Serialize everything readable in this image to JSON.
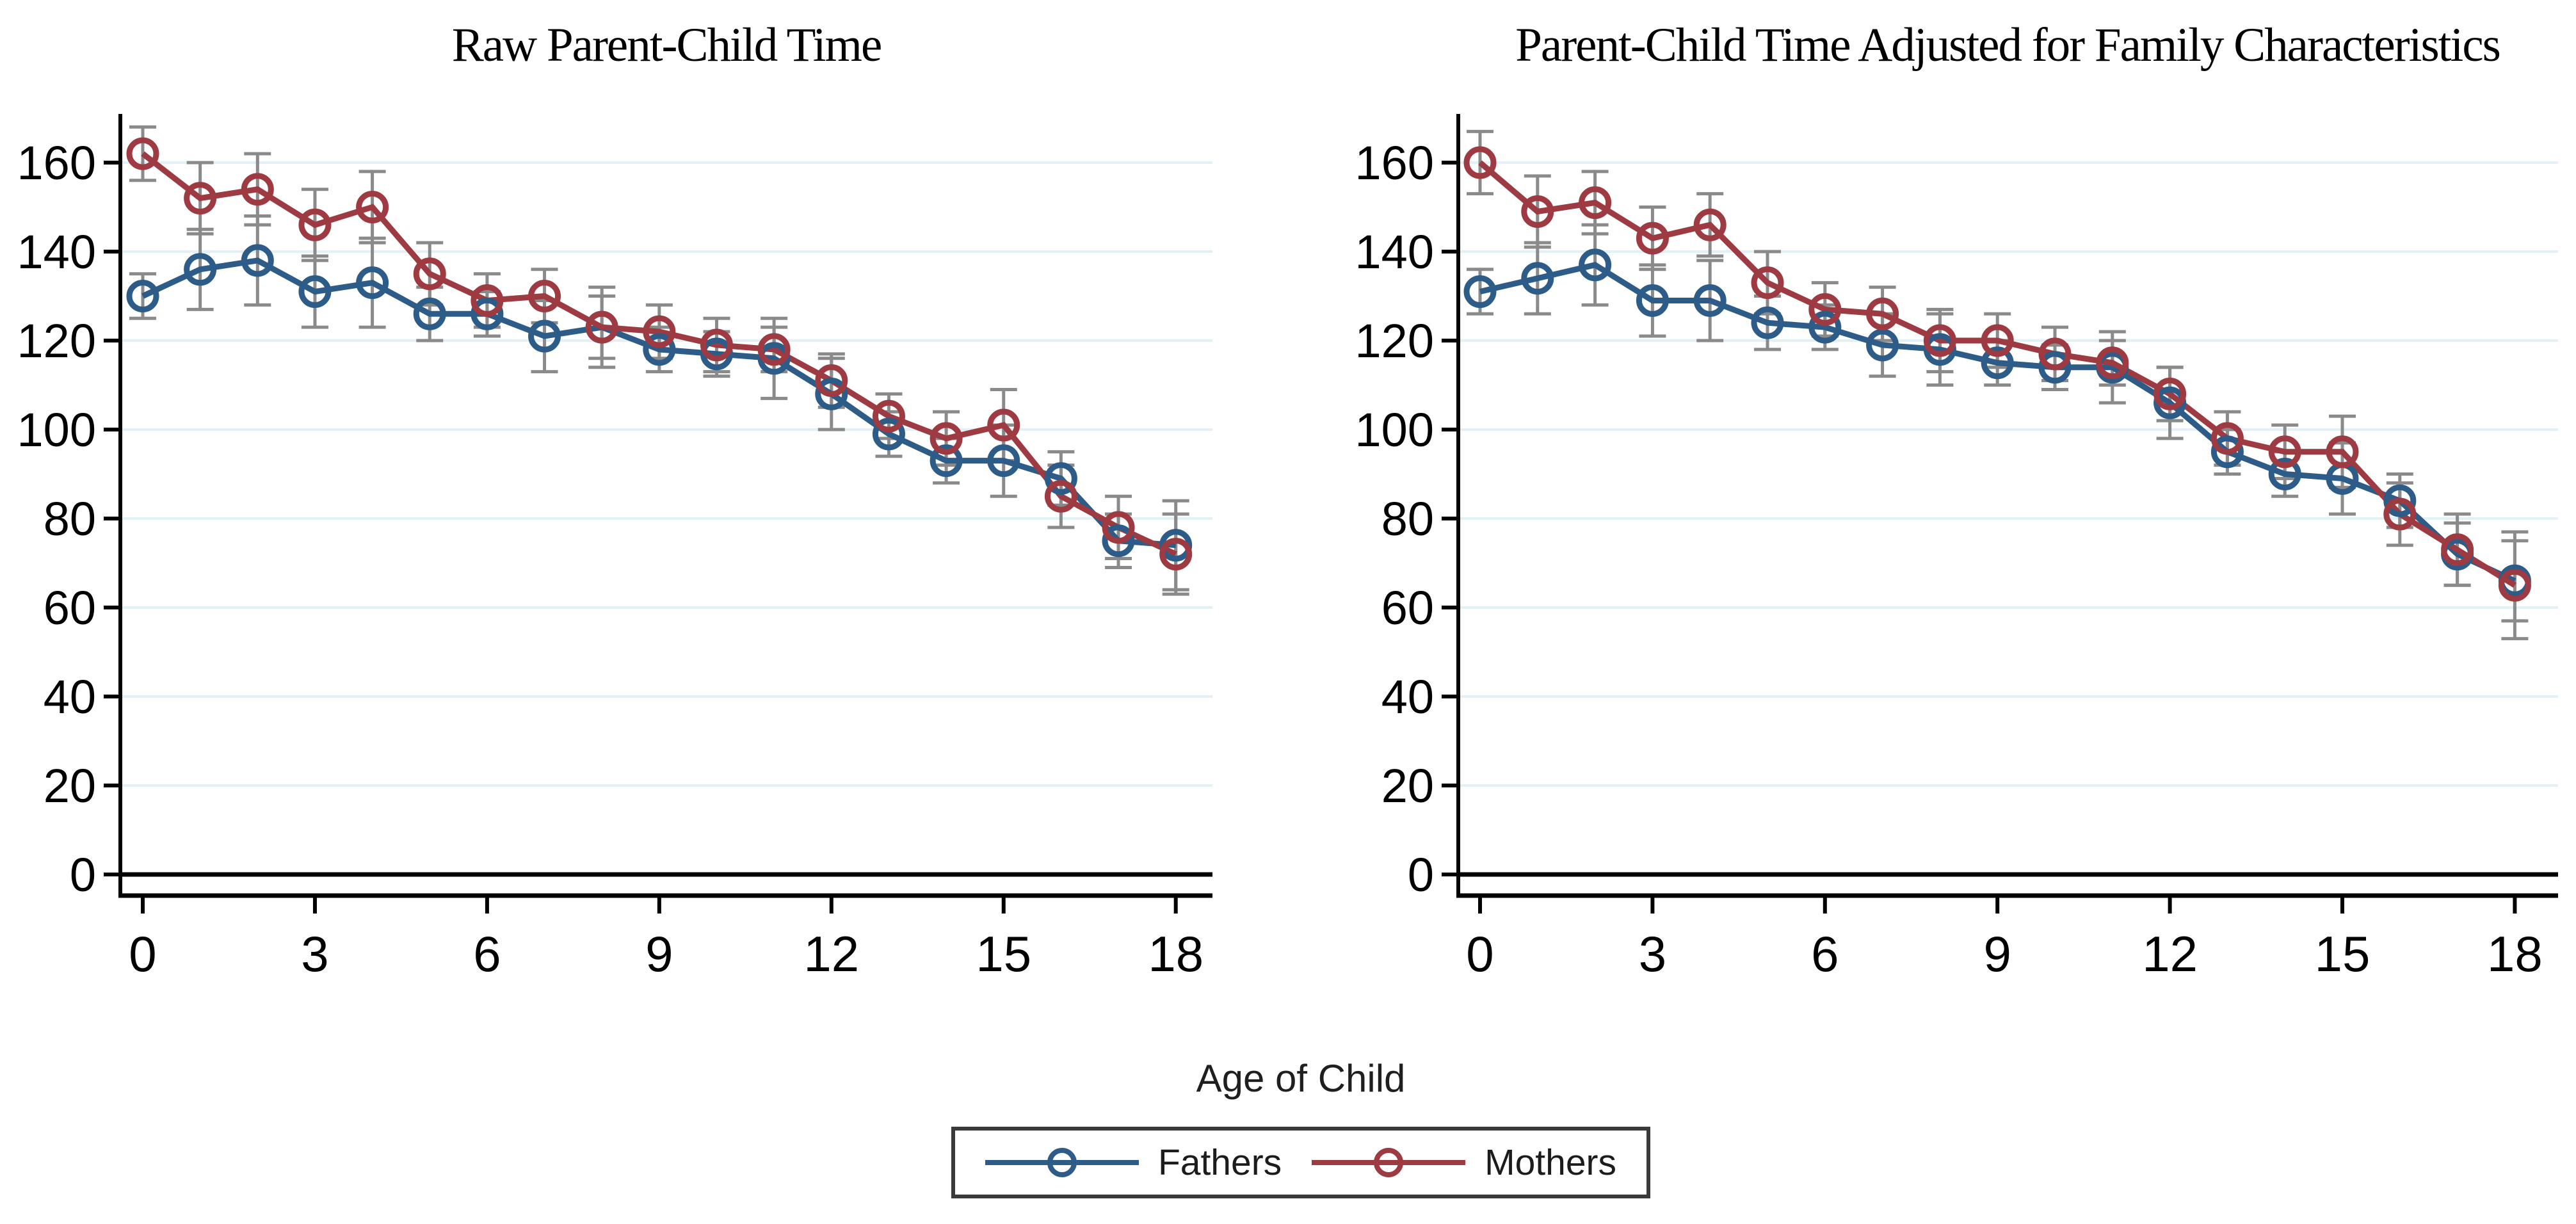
{
  "figure": {
    "background": "#ffffff"
  },
  "colors": {
    "fathers": "#2c5c87",
    "mothers": "#9e3a41",
    "error_bar": "#8a8a8a",
    "grid": "#e3f1f6",
    "axis": "#000000",
    "zero_line": "#000000",
    "text": "#000000",
    "legend_border": "#3a3a3a"
  },
  "legend": {
    "title": "Age of Child",
    "items": [
      {
        "label": "Fathers",
        "key": "fathers"
      },
      {
        "label": "Mothers",
        "key": "mothers"
      }
    ]
  },
  "chart_data": [
    {
      "type": "line",
      "title": "Raw Parent-Child Time",
      "xlabel": "Age of Child",
      "ylabel": "",
      "xlim": [
        0,
        18
      ],
      "ylim": [
        0,
        170
      ],
      "x_ticks": [
        0,
        3,
        6,
        9,
        12,
        15,
        18
      ],
      "y_ticks": [
        0,
        20,
        40,
        60,
        80,
        100,
        120,
        140,
        160
      ],
      "grid": true,
      "legend_position": "bottom",
      "x": [
        0,
        1,
        2,
        3,
        4,
        5,
        6,
        7,
        8,
        9,
        10,
        11,
        12,
        13,
        14,
        15,
        16,
        17,
        18
      ],
      "series": [
        {
          "name": "Fathers",
          "key": "fathers",
          "values": [
            130,
            136,
            138,
            131,
            133,
            126,
            126,
            121,
            123,
            118,
            117,
            116,
            108,
            99,
            93,
            93,
            89,
            75,
            74
          ],
          "ci": [
            5,
            9,
            10,
            8,
            10,
            6,
            5,
            8,
            9,
            5,
            5,
            9,
            8,
            5,
            5,
            8,
            6,
            6,
            10
          ]
        },
        {
          "name": "Mothers",
          "key": "mothers",
          "values": [
            162,
            152,
            154,
            146,
            150,
            135,
            129,
            130,
            123,
            122,
            119,
            118,
            111,
            103,
            98,
            101,
            85,
            78,
            72
          ],
          "ci": [
            6,
            8,
            8,
            8,
            8,
            7,
            6,
            6,
            7,
            6,
            6,
            5,
            6,
            5,
            6,
            8,
            7,
            7,
            9
          ]
        }
      ]
    },
    {
      "type": "line",
      "title": "Parent-Child Time Adjusted for Family Characteristics",
      "xlabel": "Age of Child",
      "ylabel": "",
      "xlim": [
        0,
        18
      ],
      "ylim": [
        0,
        170
      ],
      "x_ticks": [
        0,
        3,
        6,
        9,
        12,
        15,
        18
      ],
      "y_ticks": [
        0,
        20,
        40,
        60,
        80,
        100,
        120,
        140,
        160
      ],
      "grid": true,
      "legend_position": "bottom",
      "x": [
        0,
        1,
        2,
        3,
        4,
        5,
        6,
        7,
        8,
        9,
        10,
        11,
        12,
        13,
        14,
        15,
        16,
        17,
        18
      ],
      "series": [
        {
          "name": "Fathers",
          "key": "fathers",
          "values": [
            131,
            134,
            137,
            129,
            129,
            124,
            123,
            119,
            118,
            115,
            114,
            114,
            106,
            95,
            90,
            89,
            84,
            72,
            66
          ],
          "ci": [
            5,
            8,
            9,
            8,
            9,
            6,
            5,
            7,
            8,
            5,
            5,
            8,
            8,
            5,
            5,
            8,
            6,
            7,
            9
          ]
        },
        {
          "name": "Mothers",
          "key": "mothers",
          "values": [
            160,
            149,
            151,
            143,
            146,
            133,
            127,
            126,
            120,
            120,
            117,
            115,
            108,
            98,
            95,
            95,
            81,
            73,
            65
          ],
          "ci": [
            7,
            8,
            7,
            7,
            7,
            7,
            6,
            6,
            7,
            6,
            6,
            5,
            6,
            6,
            6,
            8,
            7,
            8,
            12
          ]
        }
      ]
    }
  ]
}
